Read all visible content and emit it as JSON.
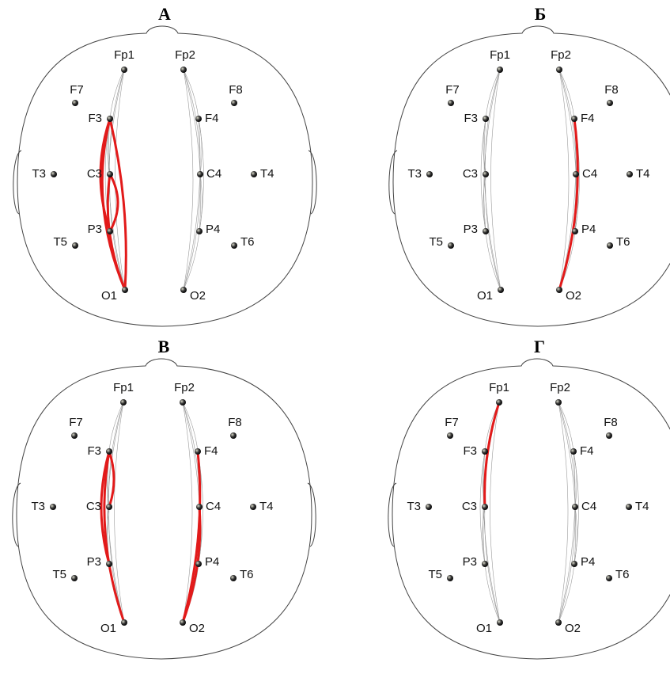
{
  "panels": [
    {
      "title": "А",
      "electrodes": [
        "Fp1",
        "Fp2",
        "F7",
        "F8",
        "F3",
        "F4",
        "T3",
        "C3",
        "C4",
        "T4",
        "P3",
        "P4",
        "T5",
        "T6",
        "O1",
        "O2"
      ]
    },
    {
      "title": "Б",
      "electrodes": [
        "Fp1",
        "Fp2",
        "F7",
        "F8",
        "F3",
        "F4",
        "T3",
        "C3",
        "C4",
        "T4",
        "P3",
        "P4",
        "T5",
        "T6",
        "O1",
        "O2"
      ]
    },
    {
      "title": "В",
      "electrodes": [
        "Fp1",
        "Fp2",
        "F7",
        "F8",
        "F3",
        "F4",
        "T3",
        "C3",
        "C4",
        "T4",
        "P3",
        "P4",
        "T5",
        "T6",
        "O1",
        "O2"
      ]
    },
    {
      "title": "Г",
      "electrodes": [
        "Fp1",
        "Fp2",
        "F7",
        "F8",
        "F3",
        "F4",
        "T3",
        "C3",
        "C4",
        "T4",
        "P3",
        "P4",
        "T5",
        "T6",
        "O1",
        "O2"
      ]
    }
  ]
}
